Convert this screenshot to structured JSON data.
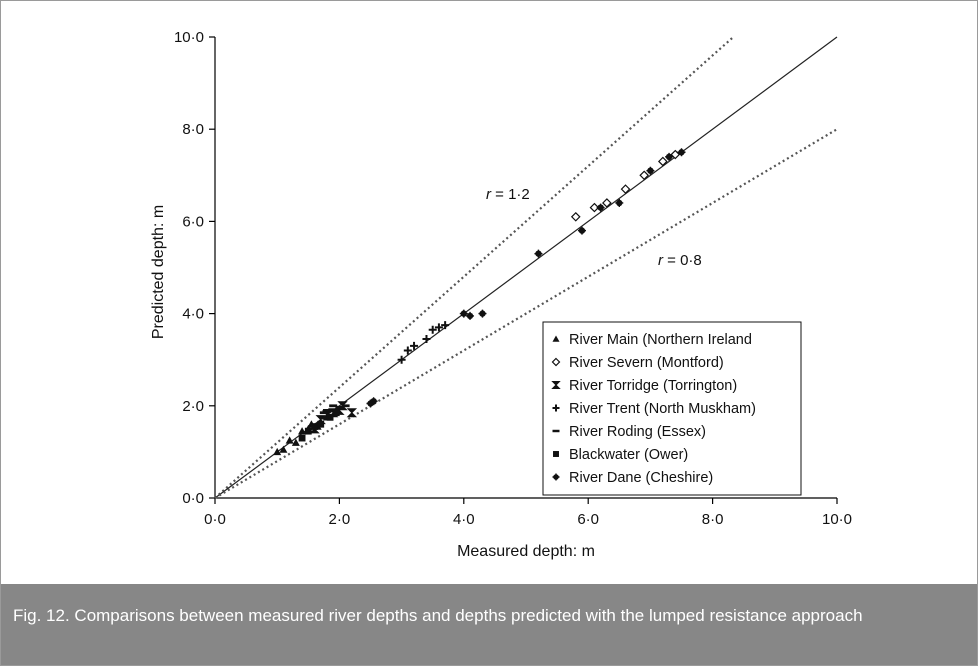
{
  "caption": "Fig. 12. Comparisons between measured river depths and depths predicted with the lumped resistance approach",
  "chart_data": {
    "type": "scatter",
    "xlabel": "Measured depth: m",
    "ylabel": "Predicted depth: m",
    "xlim": [
      0,
      10
    ],
    "ylim": [
      0,
      10
    ],
    "xticks": [
      "0·0",
      "2·0",
      "4·0",
      "6·0",
      "8·0",
      "10·0"
    ],
    "yticks": [
      "0·0",
      "2·0",
      "4·0",
      "6·0",
      "8·0",
      "10·0"
    ],
    "legend_position": "bottom-right",
    "reference_lines": [
      {
        "r_label": "r",
        "value_label": "= 1·2",
        "slope": 1.2,
        "style": "dotted"
      },
      {
        "r_label": "",
        "value_label": "",
        "slope": 1.0,
        "style": "solid"
      },
      {
        "r_label": "r",
        "value_label": "= 0·8",
        "slope": 0.8,
        "style": "dotted"
      }
    ],
    "series": [
      {
        "name": "River Main (Northern Ireland",
        "marker": "triangle",
        "points": [
          [
            1.0,
            1.0
          ],
          [
            1.1,
            1.05
          ],
          [
            1.2,
            1.25
          ],
          [
            1.3,
            1.2
          ],
          [
            1.4,
            1.45
          ],
          [
            1.5,
            1.5
          ],
          [
            1.55,
            1.6
          ],
          [
            1.65,
            1.55
          ],
          [
            1.8,
            1.75
          ]
        ]
      },
      {
        "name": "River Severn (Montford)",
        "marker": "diamond-open",
        "points": [
          [
            5.8,
            6.1
          ],
          [
            6.1,
            6.3
          ],
          [
            6.3,
            6.4
          ],
          [
            6.6,
            6.7
          ],
          [
            6.9,
            7.0
          ],
          [
            7.2,
            7.3
          ],
          [
            7.4,
            7.45
          ]
        ]
      },
      {
        "name": "River Torridge (Torrington)",
        "marker": "hourglass",
        "points": [
          [
            1.7,
            1.7
          ],
          [
            1.8,
            1.8
          ],
          [
            1.9,
            1.85
          ],
          [
            2.0,
            1.9
          ],
          [
            2.05,
            2.0
          ],
          [
            2.2,
            1.85
          ],
          [
            1.6,
            1.5
          ]
        ]
      },
      {
        "name": "River Trent (North Muskham)",
        "marker": "plus",
        "points": [
          [
            3.0,
            3.0
          ],
          [
            3.1,
            3.2
          ],
          [
            3.2,
            3.3
          ],
          [
            3.4,
            3.45
          ],
          [
            3.5,
            3.65
          ],
          [
            3.6,
            3.7
          ],
          [
            3.7,
            3.75
          ]
        ]
      },
      {
        "name": "River Roding (Essex)",
        "marker": "dash",
        "points": [
          [
            1.8,
            1.9
          ],
          [
            1.9,
            2.0
          ],
          [
            2.0,
            1.95
          ],
          [
            2.1,
            2.0
          ],
          [
            1.75,
            1.85
          ]
        ]
      },
      {
        "name": "Blackwater (Ower)",
        "marker": "square",
        "points": [
          [
            1.4,
            1.3
          ],
          [
            1.5,
            1.45
          ],
          [
            1.6,
            1.55
          ],
          [
            1.7,
            1.6
          ],
          [
            1.85,
            1.75
          ],
          [
            1.95,
            1.85
          ]
        ]
      },
      {
        "name": "River Dane (Cheshire)",
        "marker": "star",
        "points": [
          [
            2.5,
            2.05
          ],
          [
            2.55,
            2.1
          ],
          [
            4.0,
            4.0
          ],
          [
            4.1,
            3.95
          ],
          [
            4.3,
            4.0
          ],
          [
            5.2,
            5.3
          ],
          [
            5.9,
            5.8
          ],
          [
            6.2,
            6.3
          ],
          [
            6.5,
            6.4
          ],
          [
            7.0,
            7.1
          ],
          [
            7.3,
            7.4
          ],
          [
            7.5,
            7.5
          ]
        ]
      }
    ]
  }
}
